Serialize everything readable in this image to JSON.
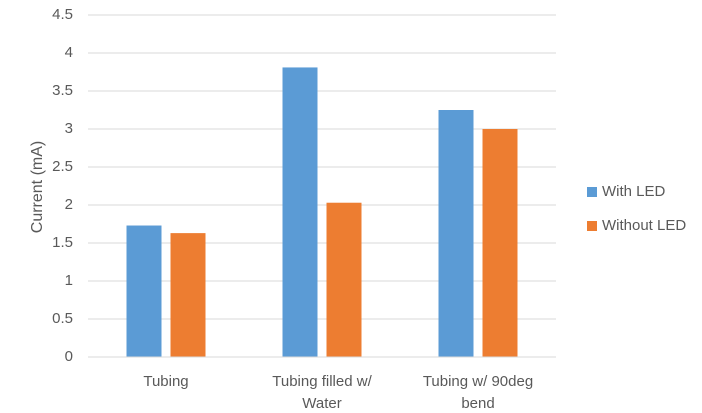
{
  "chart_data": {
    "type": "bar",
    "title": "",
    "xlabel": "",
    "ylabel": "Current (mA)",
    "ylim": [
      0,
      4.5
    ],
    "ytick_step": 0.5,
    "yticks": [
      "0",
      "0.5",
      "1",
      "1.5",
      "2",
      "2.5",
      "3",
      "3.5",
      "4",
      "4.5"
    ],
    "grid": true,
    "legend_position": "right",
    "categories": [
      [
        "Tubing"
      ],
      [
        "Tubing filled w/",
        "Water"
      ],
      [
        "Tubing w/ 90deg",
        "bend"
      ]
    ],
    "series": [
      {
        "name": "With LED",
        "color": "#5b9bd5",
        "values": [
          1.73,
          3.81,
          3.25
        ]
      },
      {
        "name": "Without LED",
        "color": "#ed7d31",
        "values": [
          1.63,
          2.03,
          3.0
        ]
      }
    ]
  }
}
